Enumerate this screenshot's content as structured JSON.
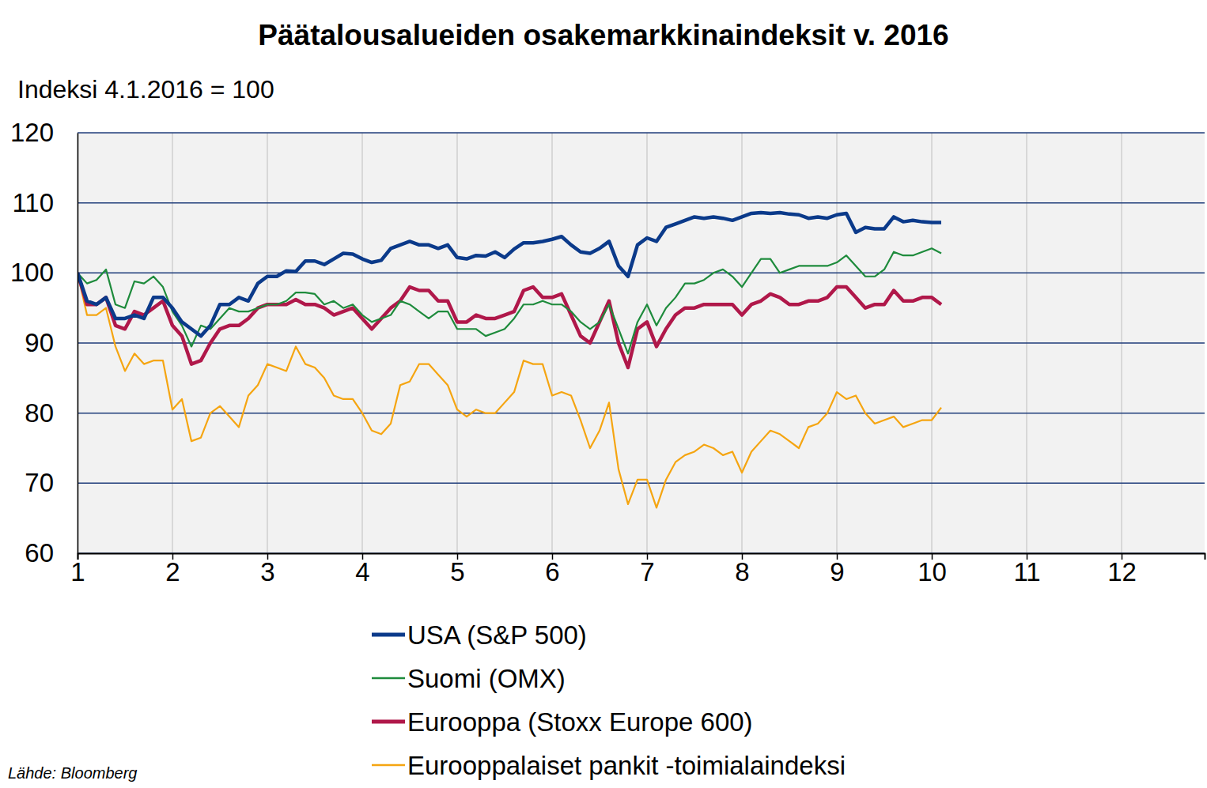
{
  "chart_data": {
    "type": "line",
    "title": "Päätalousalueiden osakemarkkinaindeksit v. 2016",
    "y_label": "Indeksi 4.1.2016 = 100",
    "source": "Lähde: Bloomberg",
    "xlim": [
      1,
      12.875
    ],
    "xticks": [
      1,
      2,
      3,
      4,
      5,
      6,
      7,
      8,
      9,
      10,
      11,
      12
    ],
    "ylim": [
      60,
      120
    ],
    "yticks": [
      60,
      70,
      80,
      90,
      100,
      110,
      120
    ],
    "grid": true,
    "legend": "bottom",
    "x": [
      1,
      1.1,
      1.2,
      1.3,
      1.4,
      1.5,
      1.6,
      1.7,
      1.8,
      1.9,
      2,
      2.1,
      2.2,
      2.3,
      2.4,
      2.5,
      2.6,
      2.7,
      2.8,
      2.9,
      3,
      3.1,
      3.2,
      3.3,
      3.4,
      3.5,
      3.6,
      3.7,
      3.8,
      3.9,
      4,
      4.1,
      4.2,
      4.3,
      4.4,
      4.5,
      4.6,
      4.7,
      4.8,
      4.9,
      5,
      5.1,
      5.2,
      5.3,
      5.4,
      5.5,
      5.6,
      5.7,
      5.8,
      5.9,
      6,
      6.1,
      6.2,
      6.3,
      6.4,
      6.5,
      6.6,
      6.7,
      6.8,
      6.9,
      7,
      7.1,
      7.2,
      7.3,
      7.4,
      7.5,
      7.6,
      7.7,
      7.8,
      7.9,
      8,
      8.1,
      8.2,
      8.3,
      8.4,
      8.5,
      8.6,
      8.7,
      8.8,
      8.9,
      9,
      9.1,
      9.2,
      9.3,
      9.4,
      9.5,
      9.6,
      9.7,
      9.8,
      9.9,
      10,
      10.1
    ],
    "series": [
      {
        "name": "USA (S&P 500)",
        "color": "#0b3a8a",
        "line_style": "thick",
        "values": [
          100,
          96,
          95.5,
          96.5,
          93.5,
          93.5,
          94,
          93.5,
          96.5,
          96.5,
          95,
          93,
          92,
          91,
          92.5,
          95.5,
          95.5,
          96.5,
          96,
          98.5,
          99.5,
          99.5,
          100.3,
          100.2,
          101.7,
          101.7,
          101.2,
          102,
          102.8,
          102.7,
          102,
          101.5,
          101.8,
          103.5,
          104,
          104.5,
          104,
          104,
          103.5,
          104,
          102.2,
          102,
          102.5,
          102.4,
          103,
          102.2,
          103.4,
          104.3,
          104.3,
          104.5,
          104.8,
          105.2,
          104,
          103,
          102.8,
          103.5,
          104.5,
          101,
          99.5,
          104,
          105,
          104.5,
          106.5,
          107,
          107.5,
          108,
          107.8,
          108,
          107.8,
          107.5,
          108,
          108.5,
          108.6,
          108.5,
          108.6,
          108.4,
          108.3,
          107.8,
          108,
          107.8,
          108.3,
          108.5,
          105.8,
          106.5,
          106.3,
          106.3,
          108,
          107.3,
          107.5,
          107.3,
          107.2,
          107.2
        ]
      },
      {
        "name": "Suomi (OMX)",
        "color": "#1e8b3c",
        "line_style": "thin",
        "values": [
          100,
          98.5,
          99,
          100.5,
          95.5,
          95,
          98.8,
          98.5,
          99.5,
          98,
          94.5,
          92.5,
          89.5,
          92.5,
          92,
          93.5,
          95,
          94.5,
          94.5,
          95,
          95.5,
          95.5,
          96,
          97.2,
          97.2,
          97,
          95.5,
          96,
          95,
          95.5,
          94,
          93,
          93.5,
          94,
          96,
          95.5,
          94.5,
          93.5,
          94.5,
          94.5,
          92,
          92,
          92,
          91,
          91.5,
          92,
          93.5,
          95.5,
          95.5,
          96,
          95.5,
          95.5,
          94.5,
          93,
          92,
          93,
          95.5,
          92,
          88.5,
          93,
          95.5,
          92.5,
          95,
          96.5,
          98.5,
          98.5,
          99,
          100,
          100.5,
          99.5,
          98,
          100,
          102,
          102,
          100,
          100.5,
          101,
          101,
          101,
          101,
          101.5,
          102.5,
          101,
          99.5,
          99.5,
          100.5,
          103,
          102.5,
          102.5,
          103,
          103.5,
          102.8
        ]
      },
      {
        "name": "Eurooppa (Stoxx Europe 600)",
        "color": "#b0184a",
        "line_style": "thick",
        "values": [
          100,
          95.5,
          95.5,
          96.5,
          92.5,
          92,
          94.5,
          94,
          95,
          96,
          92.5,
          91,
          87,
          87.5,
          90,
          92,
          92.5,
          92.5,
          93.5,
          95,
          95.5,
          95.5,
          95.5,
          96.2,
          95.5,
          95.5,
          95,
          94,
          94.5,
          95,
          93.5,
          92,
          93.5,
          95,
          96,
          98,
          97.5,
          97.5,
          96,
          96,
          93,
          93,
          94,
          93.5,
          93.5,
          94,
          94.5,
          97.5,
          98,
          96.5,
          96.5,
          97,
          94,
          91,
          90,
          93,
          96,
          90,
          86.5,
          92,
          93,
          89.5,
          92,
          94,
          95,
          95,
          95.5,
          95.5,
          95.5,
          95.5,
          94,
          95.5,
          96,
          97,
          96.5,
          95.5,
          95.5,
          96,
          96,
          96.5,
          98,
          98,
          96.5,
          95,
          95.5,
          95.5,
          97.5,
          96,
          96,
          96.5,
          96.5,
          95.5
        ]
      },
      {
        "name": "Eurooppalaiset pankit -toimialaindeksi",
        "color": "#f5a511",
        "line_style": "thin",
        "values": [
          100,
          94,
          94,
          95,
          89.5,
          86,
          88.5,
          87,
          87.5,
          87.5,
          80.5,
          82,
          76,
          76.5,
          80,
          81,
          79.5,
          78,
          82.5,
          84,
          87,
          86.5,
          86,
          89.5,
          87,
          86.5,
          85,
          82.5,
          82,
          82,
          80,
          77.5,
          77,
          78.5,
          84,
          84.5,
          87,
          87,
          85.5,
          84,
          80.5,
          79.5,
          80.5,
          80,
          80,
          81.5,
          83,
          87.5,
          87,
          87,
          82.5,
          83,
          82.5,
          79,
          75,
          77.5,
          81.5,
          72,
          67,
          70.5,
          70.5,
          66.5,
          70.5,
          73,
          74,
          74.5,
          75.5,
          75,
          74,
          74.5,
          71.5,
          74.5,
          76,
          77.5,
          77,
          76,
          75,
          78,
          78.5,
          80,
          83,
          82,
          82.5,
          80,
          78.5,
          79,
          79.5,
          78,
          78.5,
          79,
          79,
          80.8
        ]
      }
    ]
  }
}
